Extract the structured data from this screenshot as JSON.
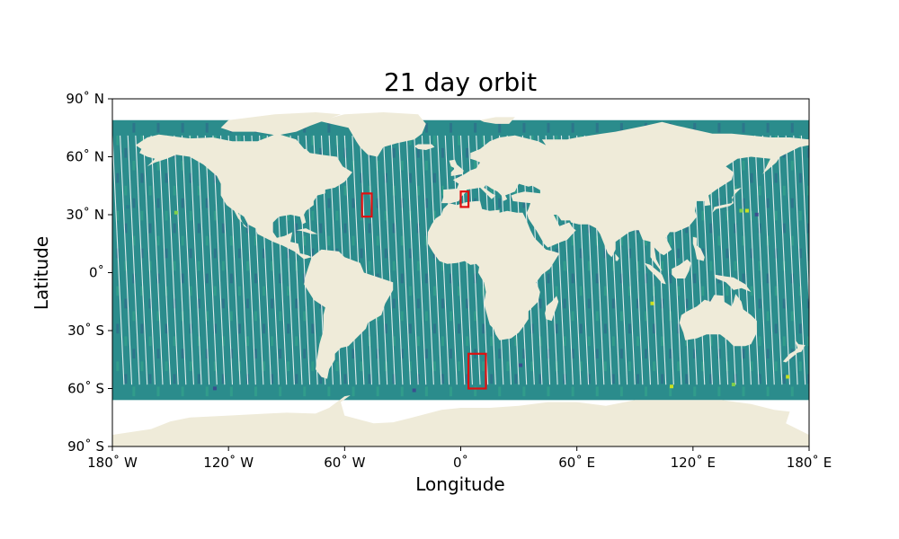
{
  "chart_data": {
    "type": "map",
    "title": "21 day orbit",
    "xlabel": "Longitude",
    "ylabel": "Latitude",
    "xlim": [
      -180,
      180
    ],
    "ylim": [
      -90,
      90
    ],
    "grid": false,
    "xticks": [
      {
        "value": -180,
        "label": "180˚ W"
      },
      {
        "value": -120,
        "label": "120˚ W"
      },
      {
        "value": -60,
        "label": "60˚ W"
      },
      {
        "value": 0,
        "label": "0˚"
      },
      {
        "value": 60,
        "label": "60˚ E"
      },
      {
        "value": 120,
        "label": "120˚ E"
      },
      {
        "value": 180,
        "label": "180˚ E"
      }
    ],
    "yticks": [
      {
        "value": 90,
        "label": "90˚ N"
      },
      {
        "value": 60,
        "label": "60˚ N"
      },
      {
        "value": 30,
        "label": "30˚ N"
      },
      {
        "value": 0,
        "label": "0˚"
      },
      {
        "value": -30,
        "label": "30˚ S"
      },
      {
        "value": -60,
        "label": "60˚ S"
      },
      {
        "value": -90,
        "label": "90˚ S"
      }
    ],
    "swath_coverage": {
      "lat_min": -66,
      "lat_max": 79,
      "colormap": "viridis"
    },
    "highlight_boxes": [
      {
        "lon_min": -51,
        "lon_max": -46,
        "lat_min": 29,
        "lat_max": 41
      },
      {
        "lon_min": 0,
        "lon_max": 4,
        "lat_min": 34,
        "lat_max": 42
      },
      {
        "lon_min": 4,
        "lon_max": 13,
        "lat_min": -60,
        "lat_max": -42
      }
    ],
    "colors": {
      "land": "#efebd9",
      "ocean_track_main": "#2b8c8c",
      "ocean_track_dark": "#2f6b8a",
      "ocean_track_light": "#35a38a",
      "box": "#e01010"
    }
  }
}
